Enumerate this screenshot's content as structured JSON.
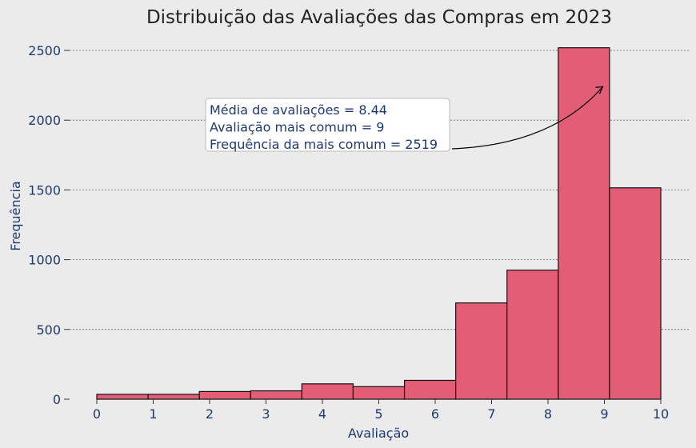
{
  "chart_data": {
    "type": "bar",
    "title": "Distribuição das Avaliações das Compras em 2023",
    "xlabel": "Avaliação",
    "ylabel": "Frequência",
    "xlim": [
      0,
      10
    ],
    "ylim": [
      0,
      2600
    ],
    "xticks": [
      "0",
      "1",
      "2",
      "3",
      "4",
      "5",
      "6",
      "7",
      "8",
      "9",
      "10"
    ],
    "yticks": [
      "0",
      "500",
      "1000",
      "1500",
      "2000",
      "2500"
    ],
    "bins": [
      {
        "start": 0.0,
        "end": 0.909,
        "value": 35
      },
      {
        "start": 0.909,
        "end": 1.818,
        "value": 35
      },
      {
        "start": 1.818,
        "end": 2.727,
        "value": 55
      },
      {
        "start": 2.727,
        "end": 3.636,
        "value": 60
      },
      {
        "start": 3.636,
        "end": 4.545,
        "value": 110
      },
      {
        "start": 4.545,
        "end": 5.455,
        "value": 90
      },
      {
        "start": 5.455,
        "end": 6.364,
        "value": 135
      },
      {
        "start": 6.364,
        "end": 7.273,
        "value": 690
      },
      {
        "start": 7.273,
        "end": 8.182,
        "value": 925
      },
      {
        "start": 8.182,
        "end": 9.091,
        "value": 2519
      },
      {
        "start": 9.091,
        "end": 10.0,
        "value": 1515
      }
    ],
    "grid": "horizontal",
    "annotation": {
      "lines": [
        "Média de avaliações = 8.44",
        "Avaliação mais comum = 9",
        "Frequência da mais comum = 2519"
      ],
      "arrow_target": {
        "x": 9.0,
        "y": 2240
      }
    },
    "colors": {
      "background": "#ebebeb",
      "bar": "#e35d77",
      "edge": "#111111",
      "text": "#1f3a6e",
      "title": "#222222"
    }
  }
}
